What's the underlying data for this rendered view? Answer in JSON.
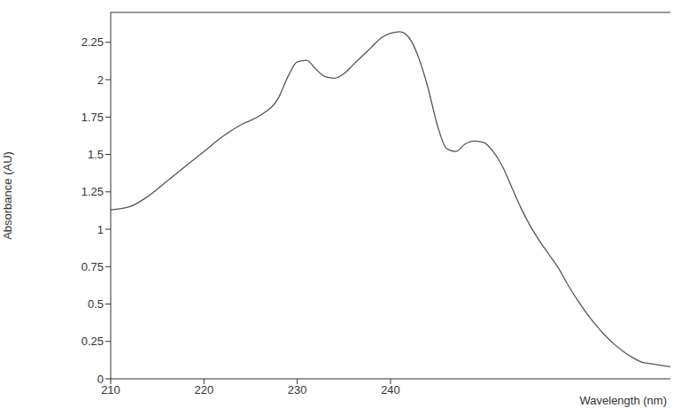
{
  "chart_data": {
    "type": "line",
    "x_label": "Wavelength (nm)",
    "y_label": "Absorbance (AU)",
    "x": [
      210,
      212,
      214,
      216,
      218,
      220,
      222,
      224,
      226,
      228,
      229,
      230,
      231,
      232,
      233,
      234,
      235,
      236,
      237,
      238,
      239,
      240,
      241,
      242,
      243,
      244,
      245,
      246,
      247,
      248,
      249,
      250,
      251,
      252,
      253,
      254,
      255,
      256,
      257,
      258,
      259,
      260,
      261,
      262,
      263,
      264,
      265,
      266,
      267,
      268,
      269,
      270
    ],
    "values": [
      1.13,
      1.15,
      1.22,
      1.32,
      1.42,
      1.52,
      1.62,
      1.7,
      1.76,
      1.88,
      2.02,
      2.12,
      2.13,
      2.07,
      2.02,
      2.01,
      2.04,
      2.1,
      2.16,
      2.22,
      2.28,
      2.31,
      2.32,
      2.28,
      2.15,
      1.95,
      1.7,
      1.54,
      1.52,
      1.57,
      1.59,
      1.58,
      1.52,
      1.42,
      1.28,
      1.14,
      1.02,
      0.92,
      0.83,
      0.74,
      0.63,
      0.53,
      0.44,
      0.36,
      0.29,
      0.23,
      0.18,
      0.14,
      0.11,
      0.1,
      0.09,
      0.08
    ],
    "color": "#555555",
    "xlim": [
      210,
      270
    ],
    "ylim": [
      0,
      2.45
    ],
    "xticks": [
      210,
      220,
      230,
      240
    ],
    "yticks": [
      0,
      0.25,
      0.5,
      0.75,
      1,
      1.25,
      1.5,
      1.75,
      2,
      2.25
    ],
    "grid": false,
    "marker": "none",
    "line_style": "solid"
  }
}
